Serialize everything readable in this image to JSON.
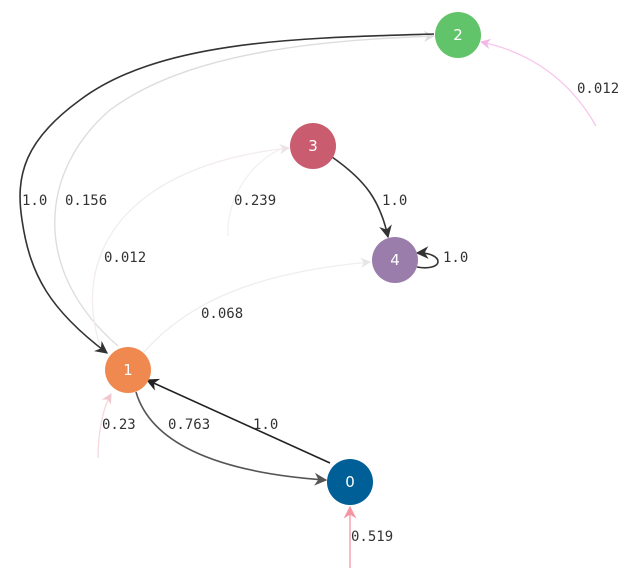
{
  "nodes": [
    {
      "id": "0",
      "label": "0",
      "color": "#005f96"
    },
    {
      "id": "1",
      "label": "1",
      "color": "#f0894f"
    },
    {
      "id": "2",
      "label": "2",
      "color": "#62c46a"
    },
    {
      "id": "3",
      "label": "3",
      "color": "#c95d6f"
    },
    {
      "id": "4",
      "label": "4",
      "color": "#9a7daa"
    }
  ],
  "edges": [
    {
      "id": "e-2-1",
      "from": "2",
      "to": "1",
      "label": "1.0",
      "color": "#333333"
    },
    {
      "id": "e-1-2",
      "from": "1",
      "to": "2",
      "label": "0.156",
      "color": "#dddddd"
    },
    {
      "id": "e-1-3",
      "from": "1",
      "to": "3",
      "label": "0.012",
      "color": "#f2ecef"
    },
    {
      "id": "e-1-4",
      "from": "1",
      "to": "4",
      "label": "0.068",
      "color": "#eeeeee"
    },
    {
      "id": "e-1-0",
      "from": "1",
      "to": "0",
      "label": "0.763",
      "color": "#555555"
    },
    {
      "id": "e-0-1",
      "from": "0",
      "to": "1",
      "label": "1.0",
      "color": "#222222"
    },
    {
      "id": "e-3-4",
      "from": "3",
      "to": "4",
      "label": "1.0",
      "color": "#333333"
    },
    {
      "id": "e-4-4",
      "from": "4",
      "to": "4",
      "label": "1.0",
      "color": "#333333"
    },
    {
      "id": "in-2",
      "from": null,
      "to": "2",
      "label": "0.012",
      "color": "#f7c6ec"
    },
    {
      "id": "in-3",
      "from": null,
      "to": "3",
      "label": "0.239",
      "color": "#f4f0f2"
    },
    {
      "id": "in-1",
      "from": null,
      "to": "1",
      "label": "0.23",
      "color": "#f5d9dd"
    },
    {
      "id": "in-0",
      "from": null,
      "to": "0",
      "label": "0.519",
      "color": "#f7aab6"
    }
  ]
}
